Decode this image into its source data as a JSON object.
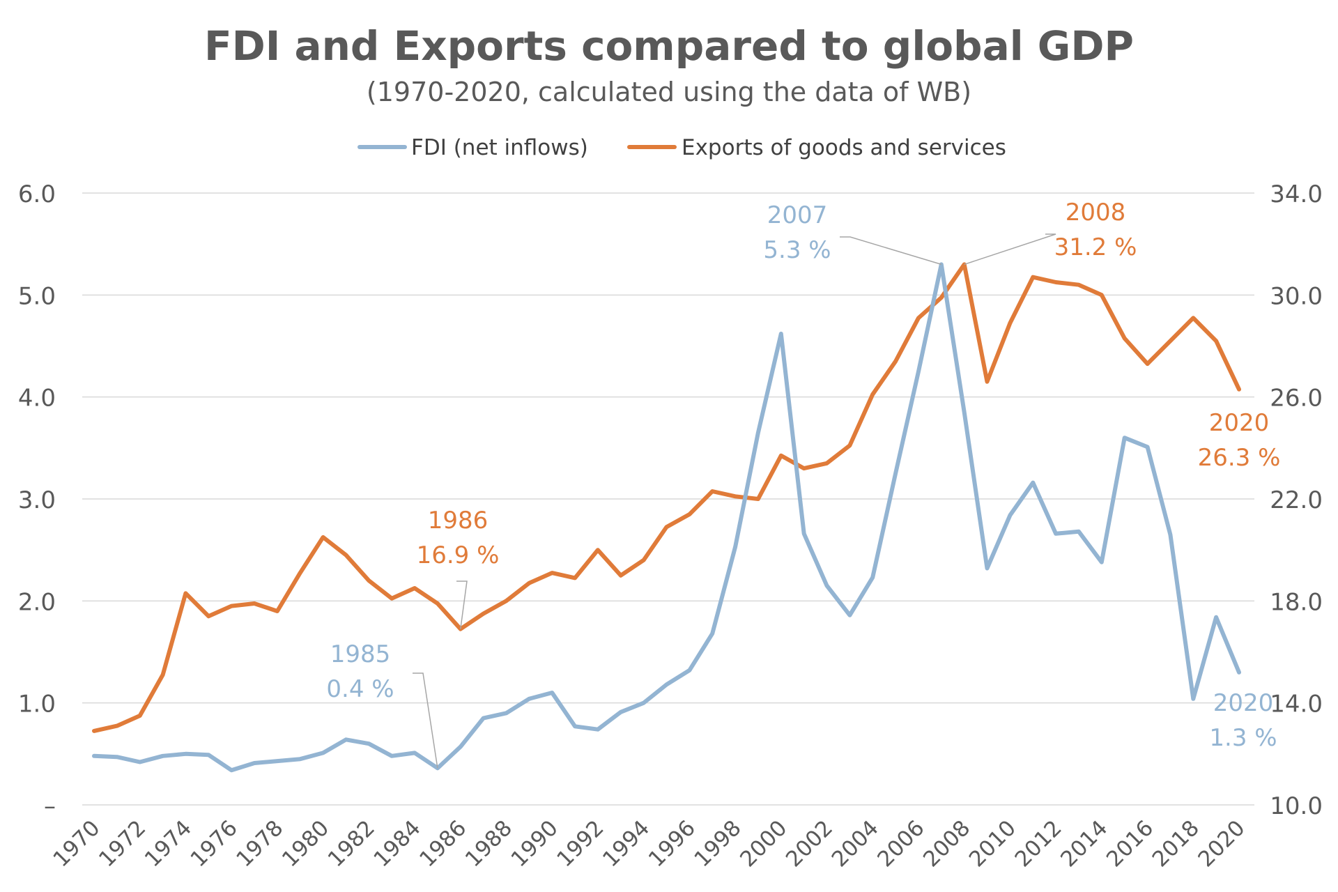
{
  "chart_data": {
    "type": "line",
    "title": "FDI and Exports compared to global GDP",
    "subtitle": "(1970-2020, calculated using the data of WB)",
    "x": [
      1970,
      1971,
      1972,
      1973,
      1974,
      1975,
      1976,
      1977,
      1978,
      1979,
      1980,
      1981,
      1982,
      1983,
      1984,
      1985,
      1986,
      1987,
      1988,
      1989,
      1990,
      1991,
      1992,
      1993,
      1994,
      1995,
      1996,
      1997,
      1998,
      1999,
      2000,
      2001,
      2002,
      2003,
      2004,
      2005,
      2006,
      2007,
      2008,
      2009,
      2010,
      2011,
      2012,
      2013,
      2014,
      2015,
      2016,
      2017,
      2018,
      2019,
      2020
    ],
    "x_tick_labels": [
      "1970",
      "1972",
      "1974",
      "1976",
      "1978",
      "1980",
      "1982",
      "1984",
      "1986",
      "1988",
      "1990",
      "1992",
      "1994",
      "1996",
      "1998",
      "2000",
      "2002",
      "2004",
      "2006",
      "2008",
      "2010",
      "2012",
      "2014",
      "2016",
      "2018",
      "2020"
    ],
    "y_left": {
      "ylim": [
        0,
        6
      ],
      "tick_labels": [
        "–",
        "1.0",
        "2.0",
        "3.0",
        "4.0",
        "5.0",
        "6.0"
      ]
    },
    "y_right": {
      "ylim": [
        10,
        34
      ],
      "tick_labels": [
        "10.0",
        "14.0",
        "18.0",
        "22.0",
        "26.0",
        "30.0",
        "34.0"
      ]
    },
    "grid": true,
    "legend_position": "top",
    "series": [
      {
        "name": "FDI (net inflows)",
        "axis": "left",
        "color": "#93b4d2",
        "values": [
          0.48,
          0.47,
          0.42,
          0.48,
          0.5,
          0.49,
          0.34,
          0.41,
          0.43,
          0.45,
          0.51,
          0.64,
          0.6,
          0.48,
          0.51,
          0.36,
          0.57,
          0.85,
          0.9,
          1.04,
          1.1,
          0.77,
          0.74,
          0.91,
          1.0,
          1.18,
          1.32,
          1.68,
          2.53,
          3.65,
          4.62,
          2.66,
          2.15,
          1.86,
          2.23,
          3.25,
          4.25,
          5.3,
          3.85,
          2.32,
          2.84,
          3.16,
          2.66,
          2.68,
          2.38,
          3.6,
          3.51,
          2.65,
          1.04,
          1.84,
          1.3
        ]
      },
      {
        "name": "Exports of goods and services",
        "axis": "right",
        "color": "#e07b39",
        "values": [
          12.9,
          13.1,
          13.5,
          15.1,
          18.3,
          17.4,
          17.8,
          17.9,
          17.6,
          19.1,
          20.5,
          19.8,
          18.8,
          18.1,
          18.5,
          17.9,
          16.9,
          17.5,
          18.0,
          18.7,
          19.1,
          18.9,
          20.0,
          19.0,
          19.6,
          20.9,
          21.4,
          22.3,
          22.1,
          22.0,
          23.7,
          23.2,
          23.4,
          24.1,
          26.1,
          27.4,
          29.1,
          29.9,
          31.2,
          26.6,
          28.9,
          30.7,
          30.5,
          30.4,
          30.0,
          28.3,
          27.3,
          28.2,
          29.1,
          28.2,
          26.3
        ]
      }
    ],
    "annotations": [
      {
        "series": "FDI (net inflows)",
        "x": 1985,
        "year": "1985",
        "value": "0.4 %",
        "color": "#93b4d2"
      },
      {
        "series": "Exports of goods and services",
        "x": 1986,
        "year": "1986",
        "value": "16.9 %",
        "color": "#e07b39"
      },
      {
        "series": "FDI (net inflows)",
        "x": 2007,
        "year": "2007",
        "value": "5.3 %",
        "color": "#93b4d2"
      },
      {
        "series": "Exports of goods and services",
        "x": 2008,
        "year": "2008",
        "value": "31.2 %",
        "color": "#e07b39"
      },
      {
        "series": "Exports of goods and services",
        "x": 2020,
        "year": "2020",
        "value": "26.3 %",
        "color": "#e07b39"
      },
      {
        "series": "FDI (net inflows)",
        "x": 2020,
        "year": "2020",
        "value": "1.3 %",
        "color": "#93b4d2"
      }
    ]
  }
}
